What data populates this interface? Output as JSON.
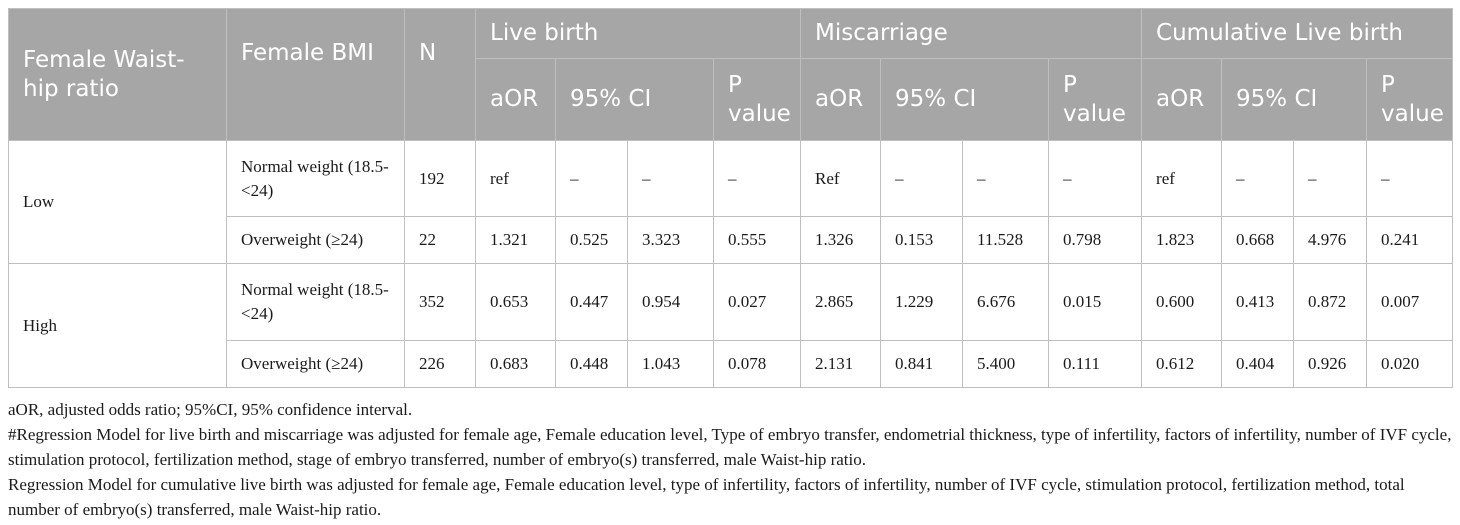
{
  "table": {
    "headers": {
      "female_waist_hip_ratio": "Female Waist-hip ratio",
      "female_bmi": "Female BMI",
      "n": "N",
      "groups": [
        "Live birth",
        "Miscarriage",
        "Cumulative Live birth"
      ],
      "sub": [
        "aOR",
        "95% CI",
        "P value"
      ]
    },
    "groups": [
      {
        "label": "Low",
        "rows": [
          {
            "bmi": "Normal weight (18.5-<24)",
            "n": "192",
            "cells": [
              "ref",
              "–",
              "–",
              "–",
              "Ref",
              "–",
              "–",
              "–",
              "ref",
              "–",
              "–",
              "–"
            ]
          },
          {
            "bmi": "Overweight (≥24)",
            "n": "22",
            "cells": [
              "1.321",
              "0.525",
              "3.323",
              "0.555",
              "1.326",
              "0.153",
              "11.528",
              "0.798",
              "1.823",
              "0.668",
              "4.976",
              "0.241"
            ]
          }
        ]
      },
      {
        "label": "High",
        "rows": [
          {
            "bmi": "Normal weight (18.5-<24)",
            "n": "352",
            "cells": [
              "0.653",
              "0.447",
              "0.954",
              "0.027",
              "2.865",
              "1.229",
              "6.676",
              "0.015",
              "0.600",
              "0.413",
              "0.872",
              "0.007"
            ]
          },
          {
            "bmi": "Overweight (≥24)",
            "n": "226",
            "cells": [
              "0.683",
              "0.448",
              "1.043",
              "0.078",
              "2.131",
              "0.841",
              "5.400",
              "0.111",
              "0.612",
              "0.404",
              "0.926",
              "0.020"
            ]
          }
        ]
      }
    ]
  },
  "notes": [
    "aOR, adjusted odds ratio; 95%CI, 95% confidence interval.",
    "#Regression Model for live birth and miscarriage was adjusted for female age, Female education level, Type of embryo transfer, endometrial thickness, type of infertility, factors of infertility, number of IVF cycle, stimulation protocol, fertilization method, stage of embryo transferred, number of embryo(s) transferred, male Waist-hip ratio.",
    "Regression Model for cumulative live birth was adjusted for female age, Female education level, type of infertility, factors of infertility, number of IVF cycle, stimulation protocol, fertilization method, total number of embryo(s) transferred, male Waist-hip ratio."
  ]
}
